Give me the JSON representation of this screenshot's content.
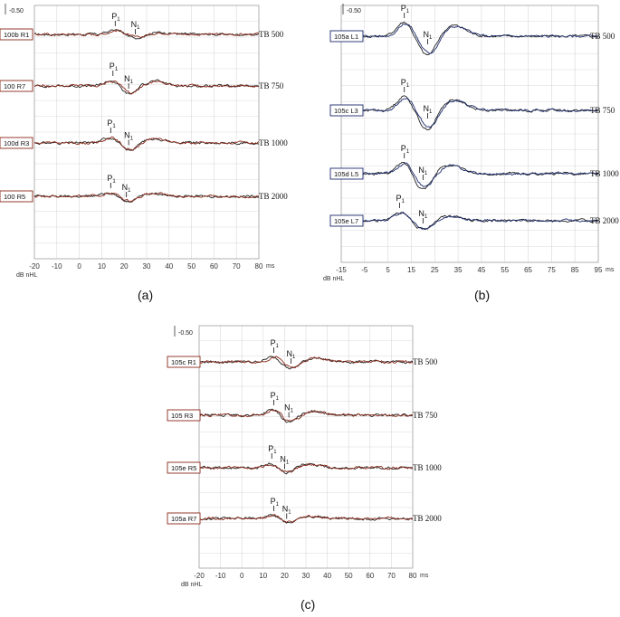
{
  "chart_data": [
    {
      "type": "line",
      "panel_label": "(a)",
      "scale_label": "-0.50",
      "x_unit_label": "ms",
      "db_label": "dB nHL",
      "xlim": [
        -20,
        80
      ],
      "xticks": [
        "-20",
        "-10",
        "0",
        "10",
        "20",
        "30",
        "40",
        "50",
        "60",
        "70",
        "80"
      ],
      "box_color": "#8b2a1a",
      "trace_colors": [
        "#222222",
        "#8b2a1a"
      ],
      "waveforms": [
        {
          "label": "100b R1",
          "freq": "TB 500",
          "p1": {
            "text": "P",
            "sub": "1",
            "x": 16
          },
          "n1": {
            "text": "N",
            "sub": "1",
            "x": 25
          },
          "p1_amp": 5,
          "n1_amp": -4
        },
        {
          "label": "100 R7",
          "freq": "TB 750",
          "p1": {
            "text": "P",
            "sub": "1",
            "x": 15
          },
          "n1": {
            "text": "N",
            "sub": "1",
            "x": 22
          },
          "p1_amp": 7,
          "n1_amp": -10
        },
        {
          "label": "100d R3",
          "freq": "TB 1000",
          "p1": {
            "text": "P",
            "sub": "1",
            "x": 14
          },
          "n1": {
            "text": "N",
            "sub": "1",
            "x": 22
          },
          "p1_amp": 7,
          "n1_amp": -9
        },
        {
          "label": "100 R5",
          "freq": "TB 2000",
          "p1": {
            "text": "P",
            "sub": "1",
            "x": 14
          },
          "n1": {
            "text": "N",
            "sub": "1",
            "x": 21
          },
          "p1_amp": 5,
          "n1_amp": -6
        }
      ]
    },
    {
      "type": "line",
      "panel_label": "(b)",
      "scale_label": "-0.50",
      "x_unit_label": "ms",
      "db_label": "dB nHL",
      "xlim": [
        -15,
        95
      ],
      "xticks": [
        "-15",
        "-5",
        "5",
        "15",
        "25",
        "35",
        "45",
        "55",
        "65",
        "75",
        "85",
        "95"
      ],
      "box_color": "#1a2a6b",
      "trace_colors": [
        "#222222",
        "#1a2a6b"
      ],
      "waveforms": [
        {
          "label": "105a L1",
          "freq": "TB 500",
          "p1": {
            "text": "P",
            "sub": "1",
            "x": 12
          },
          "n1": {
            "text": "N",
            "sub": "1",
            "x": 22
          },
          "p1_amp": 16,
          "n1_amp": -22
        },
        {
          "label": "105c L3",
          "freq": "TB 750",
          "p1": {
            "text": "P",
            "sub": "1",
            "x": 12
          },
          "n1": {
            "text": "N",
            "sub": "1",
            "x": 22
          },
          "p1_amp": 16,
          "n1_amp": -22
        },
        {
          "label": "105d L5",
          "freq": "TB 1000",
          "p1": {
            "text": "P",
            "sub": "1",
            "x": 12
          },
          "n1": {
            "text": "N",
            "sub": "1",
            "x": 20
          },
          "p1_amp": 13,
          "n1_amp": -18
        },
        {
          "label": "105e L7",
          "freq": "TB 2000",
          "p1": {
            "text": "P",
            "sub": "1",
            "x": 10
          },
          "n1": {
            "text": "N",
            "sub": "1",
            "x": 20
          },
          "p1_amp": 10,
          "n1_amp": -10
        }
      ]
    },
    {
      "type": "line",
      "panel_label": "(c)",
      "scale_label": "-0.50",
      "x_unit_label": "ms",
      "db_label": "dB nHL",
      "xlim": [
        -20,
        80
      ],
      "xticks": [
        "-20",
        "-10",
        "0",
        "10",
        "20",
        "30",
        "40",
        "50",
        "60",
        "70",
        "80"
      ],
      "box_color": "#8b2a1a",
      "trace_colors": [
        "#222222",
        "#8b2a1a"
      ],
      "waveforms": [
        {
          "label": "105c R1",
          "freq": "TB 500",
          "p1": {
            "text": "P",
            "sub": "1",
            "x": 15
          },
          "n1": {
            "text": "N",
            "sub": "1",
            "x": 23
          },
          "p1_amp": 6,
          "n1_amp": -8
        },
        {
          "label": "105 R3",
          "freq": "TB 750",
          "p1": {
            "text": "P",
            "sub": "1",
            "x": 15
          },
          "n1": {
            "text": "N",
            "sub": "1",
            "x": 22
          },
          "p1_amp": 7,
          "n1_amp": -9
        },
        {
          "label": "105e R5",
          "freq": "TB 1000",
          "p1": {
            "text": "P",
            "sub": "1",
            "x": 14
          },
          "n1": {
            "text": "N",
            "sub": "1",
            "x": 20
          },
          "p1_amp": 6,
          "n1_amp": -7
        },
        {
          "label": "105a R7",
          "freq": "TB 2000",
          "p1": {
            "text": "P",
            "sub": "1",
            "x": 15
          },
          "n1": {
            "text": "N",
            "sub": "1",
            "x": 21
          },
          "p1_amp": 4,
          "n1_amp": -5
        }
      ]
    }
  ]
}
